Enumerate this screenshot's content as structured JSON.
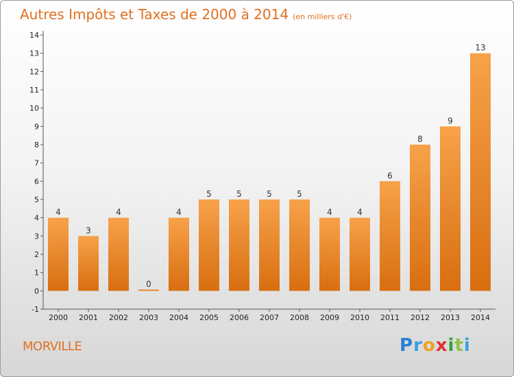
{
  "chart_data": {
    "type": "bar",
    "title": "Autres Impôts et Taxes de 2000 à 2014",
    "unit": "(en milliers d'€)",
    "categories": [
      "2000",
      "2001",
      "2002",
      "2003",
      "2004",
      "2005",
      "2006",
      "2007",
      "2008",
      "2009",
      "2010",
      "2011",
      "2012",
      "2013",
      "2014"
    ],
    "values": [
      4,
      3,
      4,
      0,
      4,
      5,
      5,
      5,
      5,
      4,
      4,
      6,
      8,
      9,
      13
    ],
    "y_ticks": [
      "-1",
      "0",
      "1",
      "2",
      "3",
      "4",
      "5",
      "6",
      "7",
      "8",
      "9",
      "10",
      "11",
      "12",
      "13",
      "14"
    ],
    "ylim": [
      -1,
      14
    ],
    "bar_color": "#f08c30",
    "grid": false
  },
  "commune": "MORVILLE",
  "logo": {
    "p": "P",
    "r": "r",
    "o": "o",
    "x": "x",
    "i": "i",
    "t": "t",
    "i2": "i"
  }
}
